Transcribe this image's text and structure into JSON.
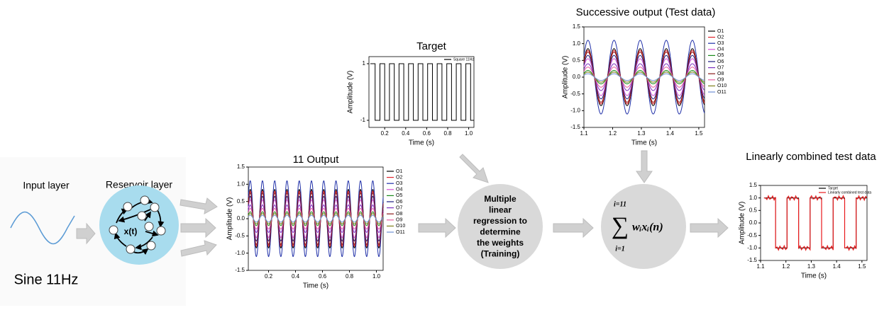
{
  "labels": {
    "input_layer": "Input layer",
    "reservoir_layer": "Reservoir layer",
    "input_signal": "Sine 11Hz",
    "state": "x(t)",
    "regression": [
      "Multiple",
      "linear",
      "regression to",
      "determine",
      "the weights",
      "(Training)"
    ],
    "formula": {
      "upper": "i=11",
      "lower": "i=1",
      "sigma": "∑",
      "term": "wᵢxᵢ(n)"
    }
  },
  "chart_data": [
    {
      "type": "square",
      "title": "Target",
      "x_label": "Time (s)",
      "y_label": "Amplitude (V)",
      "frequency": 11,
      "xlim": [
        0.05,
        1.05
      ],
      "xticks": [
        0.2,
        0.4,
        0.6,
        0.8,
        {
          "value": 1,
          "label": "1.0"
        }
      ],
      "ylim": [
        -1.25,
        1.25
      ],
      "yticks": [
        -1,
        1
      ],
      "legend": "upper right",
      "series": [
        {
          "name": "Square 11Hz",
          "color": "#000000",
          "values": [
            1,
            -1
          ]
        }
      ]
    },
    {
      "type": "line",
      "title": "11 Output",
      "x_label": "Time (s)",
      "y_label": "Amplitude (V)",
      "frequency": 11,
      "xlim": [
        0.05,
        1.05
      ],
      "xticks": [
        0.2,
        0.4,
        0.6,
        0.8,
        {
          "value": 1,
          "label": "1.0"
        }
      ],
      "ylim": [
        -1.5,
        1.5
      ],
      "yticks": [
        -1.5,
        {
          "value": -1,
          "label": "-1.0"
        },
        -0.5,
        {
          "value": 0,
          "label": "0.0"
        },
        0.5,
        {
          "value": 1,
          "label": "1.0"
        },
        1.5
      ],
      "legend": "outside right",
      "series": [
        {
          "name": "O1",
          "color": "#000000",
          "amplitude": 0.85
        },
        {
          "name": "O2",
          "color": "#e0232b",
          "amplitude": 0.8
        },
        {
          "name": "O3",
          "color": "#1f2fa8",
          "amplitude": 1.1
        },
        {
          "name": "O4",
          "color": "#d64fd6",
          "amplitude": 0.55
        },
        {
          "name": "O5",
          "color": "#1a8a1a",
          "amplitude": 0.2
        },
        {
          "name": "O6",
          "color": "#1a1a80",
          "amplitude": 0.65
        },
        {
          "name": "O7",
          "color": "#7b2fbf",
          "amplitude": 0.4
        },
        {
          "name": "O8",
          "color": "#8a1b1b",
          "amplitude": 0.75
        },
        {
          "name": "O9",
          "color": "#e85fa0",
          "amplitude": 0.3
        },
        {
          "name": "O10",
          "color": "#7f7f1a",
          "amplitude": 0.15
        },
        {
          "name": "O11",
          "color": "#6f8fd6",
          "amplitude": 0.1
        }
      ]
    },
    {
      "type": "line",
      "title": "Successive output (Test data)",
      "x_label": "Time (s)",
      "y_label": "Amplitude (V)",
      "frequency": 11,
      "xlim": [
        1.1,
        1.52
      ],
      "xticks": [
        1.1,
        1.2,
        1.3,
        1.4,
        1.5
      ],
      "ylim": [
        -1.5,
        1.5
      ],
      "yticks": [
        -1.5,
        {
          "value": -1,
          "label": "-1.0"
        },
        -0.5,
        {
          "value": 0,
          "label": "0.0"
        },
        0.5,
        {
          "value": 1,
          "label": "1.0"
        },
        1.5
      ],
      "legend": "outside right",
      "series": [
        {
          "name": "O1",
          "color": "#000000",
          "amplitude": 0.85
        },
        {
          "name": "O2",
          "color": "#e0232b",
          "amplitude": 0.8
        },
        {
          "name": "O3",
          "color": "#1f2fa8",
          "amplitude": 1.1
        },
        {
          "name": "O4",
          "color": "#d64fd6",
          "amplitude": 0.55
        },
        {
          "name": "O5",
          "color": "#1a8a1a",
          "amplitude": 0.2
        },
        {
          "name": "O6",
          "color": "#1a1a80",
          "amplitude": 0.65
        },
        {
          "name": "O7",
          "color": "#7b2fbf",
          "amplitude": 0.4
        },
        {
          "name": "O8",
          "color": "#8a1b1b",
          "amplitude": 0.75
        },
        {
          "name": "O9",
          "color": "#e85fa0",
          "amplitude": 0.3
        },
        {
          "name": "O10",
          "color": "#7f7f1a",
          "amplitude": 0.15
        },
        {
          "name": "O11",
          "color": "#6f8fd6",
          "amplitude": 0.1
        }
      ]
    },
    {
      "type": "square",
      "title": "Linearly combined test data",
      "x_label": "Time (s)",
      "y_label": "Amplitude (V)",
      "frequency": 11,
      "xlim": [
        1.1,
        1.52
      ],
      "xticks": [
        1.1,
        1.2,
        1.3,
        1.4,
        1.5
      ],
      "ylim": [
        -1.5,
        1.5
      ],
      "yticks": [
        -1.5,
        {
          "value": -1,
          "label": "-1.0"
        },
        -0.5,
        {
          "value": 0,
          "label": "0.0"
        },
        0.5,
        {
          "value": 1,
          "label": "1.0"
        },
        1.5
      ],
      "legend": "upper right",
      "series": [
        {
          "name": "Target",
          "color": "#000000",
          "values": [
            1,
            -1
          ]
        },
        {
          "name": "Linearly combined test data",
          "color": "#e8191b",
          "values": [
            1,
            -1
          ]
        }
      ]
    }
  ]
}
